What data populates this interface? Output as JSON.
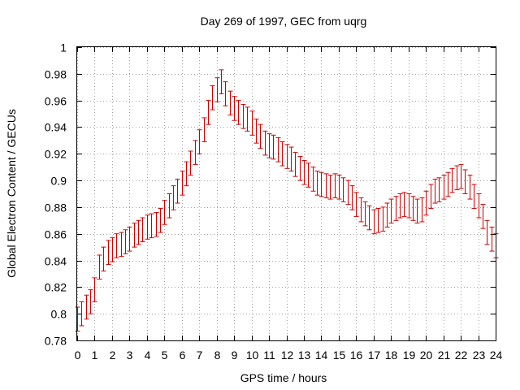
{
  "chart_data": {
    "type": "scatter",
    "title": "Day 269 of 1997, GEC from uqrg",
    "xlabel": "GPS time / hours",
    "ylabel": "Global Electron Content / GECUs",
    "xlim": [
      0,
      24
    ],
    "ylim": [
      0.78,
      1.0
    ],
    "xticks": [
      "0",
      "1",
      "2",
      "3",
      "4",
      "5",
      "6",
      "7",
      "8",
      "9",
      "10",
      "11",
      "12",
      "13",
      "14",
      "15",
      "16",
      "17",
      "18",
      "19",
      "20",
      "21",
      "22",
      "23",
      "24"
    ],
    "yticks": [
      "0.78",
      "0.8",
      "0.82",
      "0.84",
      "0.86",
      "0.88",
      "0.9",
      "0.92",
      "0.94",
      "0.96",
      "0.98",
      "1"
    ],
    "grid": true,
    "series_color": "#cc0000",
    "series": [
      {
        "x": [
          0.0,
          0.25,
          0.5,
          0.75,
          1.0,
          1.25,
          1.5,
          1.75,
          2.0,
          2.25,
          2.5,
          2.75,
          3.0,
          3.25,
          3.5,
          3.75,
          4.0,
          4.25,
          4.5,
          4.75,
          5.0,
          5.25,
          5.5,
          5.75,
          6.0,
          6.25,
          6.5,
          6.75,
          7.0,
          7.25,
          7.5,
          7.75,
          8.0,
          8.25,
          8.5,
          8.75,
          9.0,
          9.25,
          9.5,
          9.75,
          10.0,
          10.25,
          10.5,
          10.75,
          11.0,
          11.25,
          11.5,
          11.75,
          12.0,
          12.25,
          12.5,
          12.75,
          13.0,
          13.25,
          13.5,
          13.75,
          14.0,
          14.25,
          14.5,
          14.75,
          15.0,
          15.25,
          15.5,
          15.75,
          16.0,
          16.25,
          16.5,
          16.75,
          17.0,
          17.25,
          17.5,
          17.75,
          18.0,
          18.25,
          18.5,
          18.75,
          19.0,
          19.25,
          19.5,
          19.75,
          20.0,
          20.25,
          20.5,
          20.75,
          21.0,
          21.25,
          21.5,
          21.75,
          22.0,
          22.25,
          22.5,
          22.75,
          23.0,
          23.25,
          23.5,
          23.75,
          24.0
        ],
        "y": [
          0.796,
          0.8,
          0.805,
          0.809,
          0.818,
          0.835,
          0.841,
          0.846,
          0.848,
          0.851,
          0.852,
          0.854,
          0.856,
          0.859,
          0.861,
          0.863,
          0.865,
          0.866,
          0.867,
          0.87,
          0.876,
          0.881,
          0.887,
          0.892,
          0.898,
          0.905,
          0.913,
          0.921,
          0.929,
          0.938,
          0.951,
          0.962,
          0.968,
          0.974,
          0.965,
          0.958,
          0.954,
          0.951,
          0.948,
          0.946,
          0.943,
          0.937,
          0.933,
          0.928,
          0.926,
          0.925,
          0.923,
          0.92,
          0.918,
          0.916,
          0.912,
          0.909,
          0.906,
          0.904,
          0.901,
          0.898,
          0.897,
          0.896,
          0.895,
          0.896,
          0.895,
          0.893,
          0.891,
          0.887,
          0.882,
          0.878,
          0.875,
          0.872,
          0.869,
          0.87,
          0.871,
          0.874,
          0.877,
          0.879,
          0.881,
          0.882,
          0.881,
          0.879,
          0.877,
          0.878,
          0.883,
          0.888,
          0.892,
          0.893,
          0.895,
          0.897,
          0.9,
          0.902,
          0.903,
          0.899,
          0.895,
          0.888,
          0.881,
          0.873,
          0.861,
          0.856,
          0.851
        ],
        "err": 0.009
      }
    ]
  }
}
